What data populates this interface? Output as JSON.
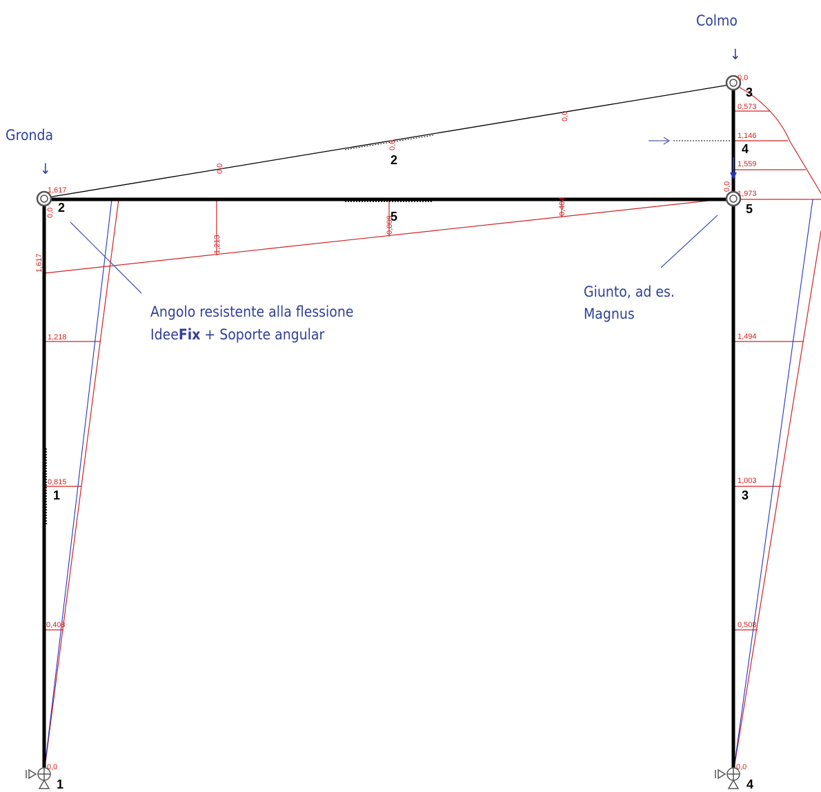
{
  "annotations": {
    "colmo": "Colmo",
    "gronda": "Gronda",
    "angolo_line1": "Angolo resistente alla flessione",
    "angolo_line2_a": "Idee",
    "angolo_line2_b": "Fix",
    "angolo_line2_c": " + Soporte angular",
    "giunto_line1": "Giunto, ad es.",
    "giunto_line2": "Magnus",
    "arrow_down": "↓"
  },
  "node_labels": {
    "n1": "1",
    "n2": "2",
    "n3": "3",
    "n4": "4",
    "n5": "5"
  },
  "member_labels": {
    "m1": "1",
    "m2": "2",
    "m3": "3",
    "m4": "4",
    "m5": "5"
  },
  "values": {
    "left_column_top": "1,617",
    "left_column_side": "1,617",
    "left_column_zero_top": "0,0",
    "left_column_1218": "1,218",
    "left_column_0815": "0,815",
    "left_column_0408": "0,408",
    "left_column_base": "0,0",
    "tie_1213": "1,213",
    "tie_0809": "0,809",
    "tie_0404": "0,404",
    "rafter_zero_a": "0,0",
    "rafter_zero_b": "0,0",
    "rafter_zero_c": "0,0",
    "right_column_top": "0,0",
    "right_column_0573": "0,573",
    "right_column_1146": "1,146",
    "right_column_1559": "1,559",
    "right_column_1973": "1,973",
    "right_column_zero_mid": "0,0",
    "right_column_1494": "1,494",
    "right_column_1003": "1,003",
    "right_column_0508": "0,508",
    "right_column_base": "0,0"
  },
  "colors": {
    "frame": "#000000",
    "moment": "#d42020",
    "deflection": "#2233cc",
    "annotation": "#2f3f9a"
  }
}
